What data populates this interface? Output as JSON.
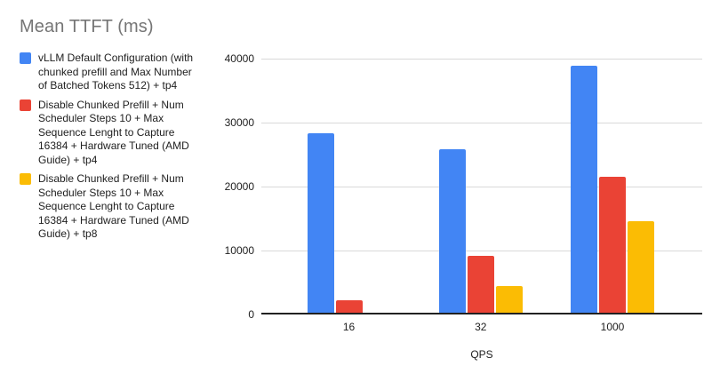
{
  "chart_data": {
    "type": "bar",
    "title": "Mean TTFT (ms)",
    "xlabel": "QPS",
    "ylabel": "",
    "categories": [
      "16",
      "32",
      "1000"
    ],
    "series": [
      {
        "name": "vLLM Default Configuration (with chunked prefill and Max Number of Batched Tokens 512) + tp4",
        "lines": [
          "vLLM Default Configuration (with",
          "chunked prefill and Max Number",
          "of Batched Tokens 512) + tp4"
        ],
        "color": "#4285F4",
        "values": [
          28400,
          25800,
          38900
        ]
      },
      {
        "name": "Disable Chunked Prefill + Num Scheduler Steps 10 + Max Sequence Lenght to Capture 16384 + Hardware Tuned (AMD Guide) + tp4",
        "lines": [
          "Disable Chunked Prefill + Num",
          "Scheduler Steps 10 + Max",
          "Sequence Lenght to Capture",
          "16384 + Hardware Tuned (AMD",
          "Guide) + tp4"
        ],
        "color": "#EA4335",
        "values": [
          2200,
          9200,
          21500
        ]
      },
      {
        "name": "Disable Chunked Prefill + Num Scheduler Steps 10 + Max Sequence Lenght to Capture 16384 + Hardware Tuned (AMD Guide) + tp8",
        "lines": [
          "Disable Chunked Prefill + Num",
          "Scheduler Steps 10 + Max",
          "Sequence Lenght to Capture",
          "16384 + Hardware Tuned (AMD",
          "Guide) + tp8"
        ],
        "color": "#FBBC04",
        "values": [
          200,
          4400,
          14600
        ]
      }
    ],
    "ylim": [
      0,
      40000
    ],
    "yticks": [
      0,
      10000,
      20000,
      30000,
      40000
    ],
    "grid": true,
    "legend_position": "left",
    "colors": {
      "title_text": "#757575",
      "axis_text": "#212121",
      "gridline": "#d9d9d9",
      "baseline": "#212121",
      "background": "#ffffff"
    }
  }
}
